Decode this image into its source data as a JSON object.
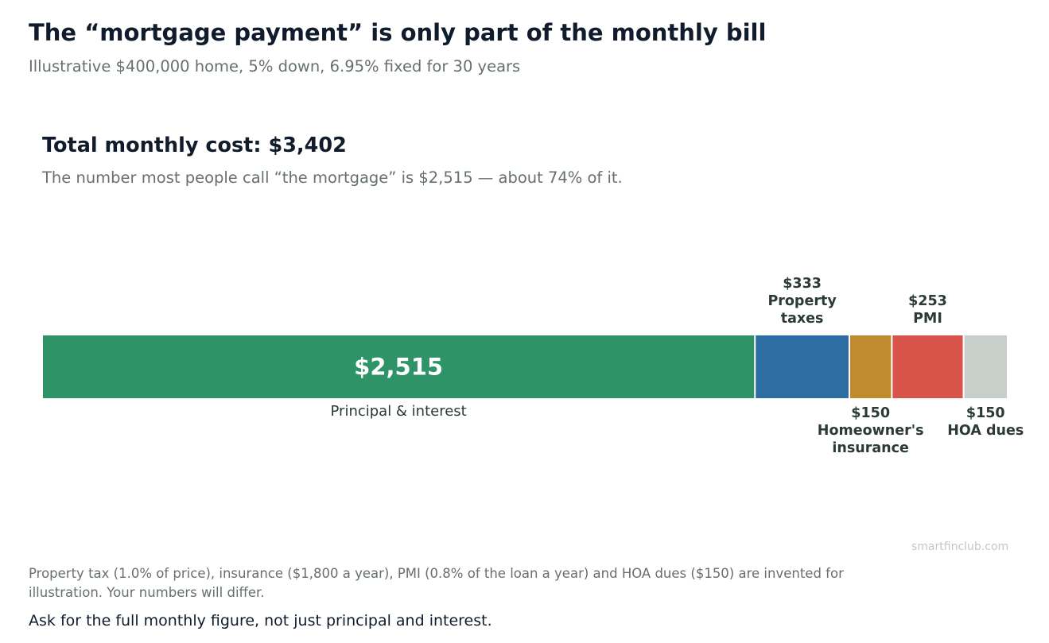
{
  "header": {
    "title": "The “mortgage payment” is only part of the monthly bill",
    "subtitle": "Illustrative $400,000 home, 5% down, 6.95% fixed for 30 years"
  },
  "summary": {
    "headline": "Total monthly cost: $3,402",
    "subheadline": "The number most people call “the mortgage” is $2,515 — about 74% of it."
  },
  "chart_data": {
    "type": "bar",
    "orientation": "horizontal-stacked",
    "total": 3402,
    "unit": "$ per month",
    "segments": [
      {
        "name": "Principal & interest",
        "value": 2515,
        "value_label": "$2,515",
        "label_lines": [
          "Principal & interest"
        ],
        "color": "#2e9467",
        "label_position": "inside-below"
      },
      {
        "name": "Property taxes",
        "value": 333,
        "value_label": "$333",
        "label_lines": [
          "Property",
          "taxes"
        ],
        "color": "#2e6da3",
        "label_position": "above"
      },
      {
        "name": "Homeowner's insurance",
        "value": 150,
        "value_label": "$150",
        "label_lines": [
          "Homeowner's",
          "insurance"
        ],
        "color": "#c08b2e",
        "label_position": "below"
      },
      {
        "name": "PMI",
        "value": 253,
        "value_label": "$253",
        "label_lines": [
          "PMI"
        ],
        "color": "#d8534a",
        "label_position": "above"
      },
      {
        "name": "HOA dues",
        "value": 150,
        "value_label": "$150",
        "label_lines": [
          "HOA dues"
        ],
        "color": "#c8cfca",
        "label_position": "below"
      }
    ],
    "grid": false,
    "legend": "none"
  },
  "footer": {
    "source": "smartfinclub.com",
    "footnote": "Property tax (1.0% of price), insurance ($1,800 a year), PMI (0.8% of the loan a year) and HOA dues ($150) are invented for illustration. Your numbers will differ.",
    "takeaway": "Ask for the full monthly figure, not just principal and interest."
  },
  "colors": {
    "title_text": "#101c2c",
    "muted_text": "#66706e",
    "label_text": "#2b3a36",
    "source_text": "#c3c8c6"
  }
}
